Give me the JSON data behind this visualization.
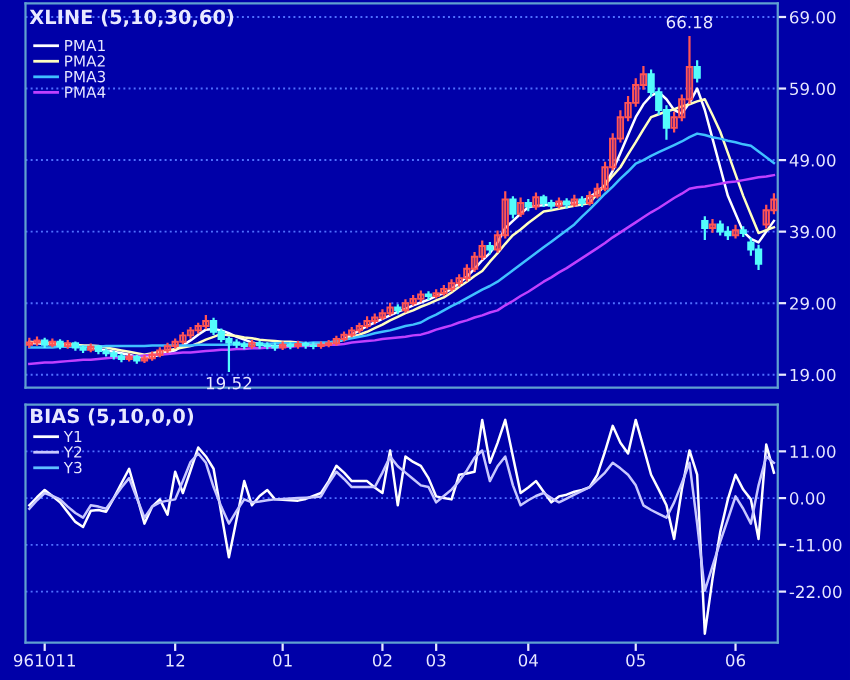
{
  "chart_data": [
    {
      "type": "candlestick",
      "title": "XLINE (5,10,30,60)",
      "categories": [
        null,
        null,
        "961011",
        null,
        null,
        null,
        null,
        null,
        null,
        null,
        null,
        null,
        null,
        null,
        null,
        null,
        null,
        null,
        null,
        "12",
        null,
        null,
        null,
        null,
        null,
        null,
        null,
        null,
        null,
        null,
        null,
        null,
        null,
        "01",
        null,
        null,
        null,
        null,
        null,
        null,
        null,
        null,
        null,
        null,
        null,
        null,
        "02",
        null,
        null,
        null,
        null,
        null,
        null,
        "03",
        null,
        null,
        null,
        null,
        null,
        null,
        null,
        null,
        null,
        null,
        null,
        "04",
        null,
        null,
        null,
        null,
        null,
        null,
        null,
        null,
        null,
        null,
        null,
        null,
        null,
        "05",
        null,
        null,
        null,
        null,
        null,
        null,
        null,
        null,
        null,
        null,
        null,
        null,
        "06",
        null,
        null,
        null,
        null,
        null
      ],
      "ohlc": [
        [
          23.2,
          24.0,
          22.9,
          23.5
        ],
        [
          23.5,
          24.2,
          23.2,
          23.8
        ],
        [
          23.8,
          24.0,
          22.9,
          23.2
        ],
        [
          23.2,
          23.9,
          23.0,
          23.6
        ],
        [
          23.6,
          23.8,
          22.7,
          23.0
        ],
        [
          23.0,
          23.7,
          22.8,
          23.4
        ],
        [
          23.4,
          23.5,
          22.5,
          22.8
        ],
        [
          22.8,
          23.0,
          22.2,
          22.5
        ],
        [
          22.5,
          23.2,
          22.3,
          22.9
        ],
        [
          22.9,
          23.0,
          22.0,
          22.3
        ],
        [
          22.3,
          22.5,
          21.7,
          22.0
        ],
        [
          22.0,
          22.2,
          21.3,
          21.6
        ],
        [
          21.6,
          21.8,
          20.9,
          21.2
        ],
        [
          21.2,
          21.8,
          21.0,
          21.5
        ],
        [
          21.5,
          21.6,
          20.7,
          21.0
        ],
        [
          21.0,
          21.6,
          20.8,
          21.3
        ],
        [
          21.3,
          22.1,
          21.1,
          21.8
        ],
        [
          21.8,
          22.7,
          21.6,
          22.4
        ],
        [
          22.4,
          23.3,
          22.2,
          23.0
        ],
        [
          23.0,
          23.9,
          22.8,
          23.6
        ],
        [
          23.6,
          24.8,
          23.4,
          24.5
        ],
        [
          24.5,
          25.5,
          24.2,
          25.2
        ],
        [
          25.2,
          26.1,
          24.9,
          25.8
        ],
        [
          25.8,
          27.2,
          25.5,
          26.5
        ],
        [
          26.5,
          26.8,
          24.7,
          25.0
        ],
        [
          25.0,
          25.3,
          23.7,
          24.0
        ],
        [
          24.0,
          24.2,
          19.52,
          23.5
        ],
        [
          23.5,
          23.8,
          22.9,
          23.2
        ],
        [
          23.2,
          23.5,
          22.7,
          23.0
        ],
        [
          23.0,
          23.7,
          22.8,
          23.4
        ],
        [
          23.4,
          23.6,
          22.8,
          23.1
        ],
        [
          23.1,
          23.4,
          22.7,
          23.0
        ],
        [
          23.0,
          23.3,
          22.5,
          22.8
        ],
        [
          22.8,
          23.5,
          22.6,
          23.2
        ],
        [
          23.2,
          23.4,
          22.7,
          23.0
        ],
        [
          23.0,
          23.6,
          22.8,
          23.3
        ],
        [
          23.3,
          23.5,
          22.8,
          23.1
        ],
        [
          23.1,
          23.4,
          22.7,
          23.0
        ],
        [
          23.0,
          23.5,
          22.8,
          23.2
        ],
        [
          23.2,
          23.7,
          23.0,
          23.4
        ],
        [
          23.4,
          24.3,
          23.2,
          24.0
        ],
        [
          24.0,
          24.9,
          23.8,
          24.6
        ],
        [
          24.6,
          25.5,
          24.4,
          25.2
        ],
        [
          25.2,
          26.1,
          25.0,
          25.8
        ],
        [
          25.8,
          27.0,
          25.6,
          26.5
        ],
        [
          26.5,
          27.4,
          26.2,
          27.0
        ],
        [
          27.0,
          28.0,
          26.8,
          27.6
        ],
        [
          27.6,
          28.9,
          27.4,
          28.4
        ],
        [
          28.4,
          28.7,
          27.6,
          28.0
        ],
        [
          28.0,
          29.4,
          27.8,
          29.0
        ],
        [
          29.0,
          30.0,
          28.8,
          29.6
        ],
        [
          29.6,
          30.6,
          29.3,
          30.2
        ],
        [
          30.2,
          30.5,
          29.6,
          30.0
        ],
        [
          30.0,
          30.8,
          29.8,
          30.4
        ],
        [
          30.4,
          31.4,
          30.2,
          31.0
        ],
        [
          31.0,
          32.2,
          30.8,
          31.8
        ],
        [
          31.8,
          32.9,
          31.5,
          32.5
        ],
        [
          32.5,
          34.3,
          32.2,
          33.8
        ],
        [
          33.8,
          36.0,
          33.5,
          35.5
        ],
        [
          35.5,
          37.6,
          35.2,
          37.0
        ],
        [
          37.0,
          37.4,
          36.0,
          36.5
        ],
        [
          36.5,
          39.0,
          36.2,
          38.5
        ],
        [
          38.5,
          44.5,
          38.2,
          43.5
        ],
        [
          43.5,
          43.8,
          41.0,
          41.5
        ],
        [
          41.5,
          43.6,
          41.2,
          43.0
        ],
        [
          43.0,
          43.4,
          42.0,
          42.5
        ],
        [
          42.5,
          44.3,
          42.2,
          43.8
        ],
        [
          43.8,
          44.0,
          42.6,
          43.0
        ],
        [
          43.0,
          43.3,
          42.2,
          42.6
        ],
        [
          42.6,
          43.6,
          42.4,
          43.2
        ],
        [
          43.2,
          43.5,
          42.4,
          42.8
        ],
        [
          42.8,
          44.0,
          42.6,
          43.5
        ],
        [
          43.5,
          43.8,
          42.6,
          43.0
        ],
        [
          43.0,
          44.5,
          42.8,
          44.0
        ],
        [
          44.0,
          45.6,
          43.8,
          45.0
        ],
        [
          45.0,
          48.6,
          44.8,
          48.0
        ],
        [
          48.0,
          52.6,
          47.7,
          52.0
        ],
        [
          52.0,
          55.8,
          51.6,
          55.0
        ],
        [
          55.0,
          57.8,
          54.6,
          57.0
        ],
        [
          57.0,
          60.3,
          56.6,
          59.5
        ],
        [
          59.5,
          62.0,
          59.0,
          61.0
        ],
        [
          61.0,
          61.5,
          58.0,
          58.5
        ],
        [
          58.5,
          59.0,
          55.5,
          56.0
        ],
        [
          56.0,
          56.5,
          52.0,
          53.5
        ],
        [
          53.5,
          55.6,
          53.0,
          55.0
        ],
        [
          55.0,
          58.0,
          54.6,
          57.5
        ],
        [
          57.5,
          66.18,
          57.0,
          62.0
        ],
        [
          62.0,
          62.8,
          60.0,
          60.5
        ],
        [
          40.5,
          41.0,
          38.0,
          39.5
        ],
        [
          39.5,
          40.6,
          39.0,
          40.0
        ],
        [
          40.0,
          40.4,
          38.6,
          39.0
        ],
        [
          39.0,
          39.6,
          38.0,
          38.5
        ],
        [
          38.5,
          39.8,
          38.2,
          39.2
        ],
        [
          39.2,
          39.6,
          38.4,
          38.8
        ],
        [
          37.5,
          38.0,
          35.8,
          36.5
        ],
        [
          36.5,
          37.0,
          33.8,
          34.5
        ],
        [
          40.0,
          42.6,
          39.6,
          42.0
        ],
        [
          42.0,
          44.2,
          41.6,
          43.5
        ]
      ],
      "colors": [
        "#ff5454",
        "#ff5454",
        "#54fcfc",
        "#ff5454",
        "#54fcfc",
        "#ff5454",
        "#54fcfc",
        "#54fcfc",
        "#ff5454",
        "#54fcfc",
        "#54fcfc",
        "#54fcfc",
        "#54fcfc",
        "#ff5454",
        "#54fcfc",
        "#ff5454",
        "#ff5454",
        "#ff5454",
        "#ff5454",
        "#ff5454",
        "#ff5454",
        "#ff5454",
        "#ff5454",
        "#ff5454",
        "#54fcfc",
        "#54fcfc",
        "#54fcfc",
        "#54fcfc",
        "#54fcfc",
        "#ff5454",
        "#54fcfc",
        "#54fcfc",
        "#54fcfc",
        "#ff5454",
        "#54fcfc",
        "#ff5454",
        "#54fcfc",
        "#54fcfc",
        "#ff5454",
        "#ff5454",
        "#ff5454",
        "#ff5454",
        "#ff5454",
        "#ff5454",
        "#ff5454",
        "#ff5454",
        "#ff5454",
        "#ff5454",
        "#54fcfc",
        "#ff5454",
        "#ff5454",
        "#ff5454",
        "#54fcfc",
        "#ff5454",
        "#ff5454",
        "#ff5454",
        "#ff5454",
        "#ff5454",
        "#ff5454",
        "#ff5454",
        "#54fcfc",
        "#ff5454",
        "#ff5454",
        "#54fcfc",
        "#ff5454",
        "#54fcfc",
        "#ff5454",
        "#54fcfc",
        "#54fcfc",
        "#ff5454",
        "#54fcfc",
        "#ff5454",
        "#54fcfc",
        "#ff5454",
        "#ff5454",
        "#ff5454",
        "#ff5454",
        "#ff5454",
        "#ff5454",
        "#ff5454",
        "#ff5454",
        "#54fcfc",
        "#54fcfc",
        "#54fcfc",
        "#ff5454",
        "#ff5454",
        "#ff5454",
        "#54fcfc",
        "#54fcfc",
        "#ff5454",
        "#54fcfc",
        "#54fcfc",
        "#ff5454",
        "#54fcfc",
        "#54fcfc",
        "#54fcfc",
        "#ff5454",
        "#ff5454"
      ],
      "series": [
        {
          "name": "PMA1",
          "type": "line",
          "color": "#ffffff",
          "values": [
            23.4,
            23.4,
            23.3,
            23.3,
            23.2,
            23.1,
            23.1,
            23.0,
            22.8,
            22.6,
            22.4,
            22.2,
            22.0,
            21.8,
            21.5,
            21.4,
            21.5,
            21.8,
            22.1,
            22.4,
            23.1,
            23.8,
            24.6,
            25.3,
            25.4,
            25.2,
            24.8,
            24.3,
            23.9,
            23.5,
            23.3,
            23.1,
            23.0,
            23.0,
            23.0,
            23.1,
            23.1,
            23.1,
            23.2,
            23.2,
            23.5,
            24.0,
            24.6,
            25.2,
            25.8,
            26.3,
            26.8,
            27.3,
            27.8,
            28.2,
            28.7,
            29.1,
            29.5,
            30.0,
            30.4,
            31.0,
            31.8,
            32.7,
            33.8,
            35.0,
            36.0,
            37.5,
            39.5,
            40.5,
            41.5,
            42.4,
            42.6,
            42.7,
            42.8,
            42.9,
            43.0,
            43.0,
            43.3,
            43.8,
            44.6,
            45.5,
            47.5,
            50.0,
            52.5,
            55.0,
            56.8,
            58.0,
            58.5,
            57.5,
            56.0,
            55.5,
            57.0,
            59.0,
            56.0,
            52.0,
            48.0,
            44.0,
            41.5,
            39.0,
            38.0,
            37.5,
            39.0,
            40.5
          ]
        },
        {
          "name": "PMA2",
          "type": "line",
          "color": "#ffffc0",
          "values": [
            23.6,
            23.5,
            23.5,
            23.4,
            23.3,
            23.3,
            23.2,
            23.1,
            23.1,
            23.0,
            22.8,
            22.6,
            22.4,
            22.2,
            22.0,
            21.8,
            22.0,
            22.2,
            22.4,
            22.6,
            22.8,
            23.0,
            23.4,
            23.9,
            24.3,
            24.7,
            24.5,
            24.4,
            24.2,
            24.1,
            23.9,
            23.8,
            23.7,
            23.6,
            23.6,
            23.5,
            23.4,
            23.3,
            23.3,
            23.2,
            23.6,
            23.9,
            24.3,
            24.6,
            25.0,
            25.5,
            26.0,
            26.6,
            27.1,
            27.6,
            28.0,
            28.5,
            28.9,
            29.4,
            29.8,
            30.5,
            31.3,
            32.0,
            32.8,
            33.5,
            34.8,
            36.0,
            37.3,
            38.5,
            39.3,
            40.2,
            41.0,
            41.8,
            42.0,
            42.2,
            42.4,
            42.6,
            42.8,
            43.0,
            44.3,
            45.5,
            46.8,
            48.0,
            49.8,
            51.5,
            53.3,
            55.0,
            55.4,
            55.8,
            56.1,
            56.5,
            56.8,
            57.2,
            57.5,
            55.3,
            53.0,
            50.0,
            47.0,
            44.0,
            41.4,
            38.8,
            39.2,
            39.6
          ]
        },
        {
          "name": "PMA3",
          "type": "line",
          "color": "#40c0ff",
          "values": [
            22.8,
            22.8,
            22.8,
            22.8,
            22.9,
            22.9,
            22.9,
            22.9,
            22.9,
            22.9,
            23.0,
            23.0,
            23.0,
            23.0,
            23.0,
            23.0,
            23.1,
            23.1,
            23.1,
            23.1,
            23.1,
            23.1,
            23.2,
            23.2,
            23.2,
            23.2,
            23.2,
            23.3,
            23.3,
            23.3,
            23.3,
            23.3,
            23.4,
            23.4,
            23.4,
            23.4,
            23.4,
            23.5,
            23.5,
            23.5,
            23.7,
            23.9,
            24.1,
            24.3,
            24.5,
            24.8,
            25.0,
            25.2,
            25.5,
            25.8,
            26.0,
            26.3,
            26.9,
            27.4,
            28.0,
            28.6,
            29.1,
            29.7,
            30.3,
            30.9,
            31.4,
            32.0,
            32.8,
            33.6,
            34.4,
            35.2,
            36.0,
            36.8,
            37.6,
            38.4,
            39.2,
            40.0,
            41.1,
            42.1,
            43.2,
            44.3,
            45.3,
            46.4,
            47.4,
            48.5,
            49.0,
            49.6,
            50.1,
            50.6,
            51.1,
            51.6,
            52.2,
            52.7,
            52.5,
            52.2,
            52.0,
            51.7,
            51.5,
            51.2,
            51.0,
            50.2,
            49.4,
            48.6
          ]
        },
        {
          "name": "PMA4",
          "type": "line",
          "color": "#c040ff",
          "values": [
            20.5,
            20.6,
            20.7,
            20.7,
            20.8,
            20.9,
            21.0,
            21.1,
            21.1,
            21.2,
            21.3,
            21.4,
            21.4,
            21.5,
            21.6,
            21.7,
            21.8,
            21.8,
            21.9,
            22.0,
            22.1,
            22.1,
            22.2,
            22.3,
            22.4,
            22.5,
            22.5,
            22.6,
            22.6,
            22.7,
            22.7,
            22.8,
            22.8,
            22.9,
            22.9,
            23.0,
            23.0,
            23.1,
            23.1,
            23.2,
            23.2,
            23.3,
            23.5,
            23.6,
            23.7,
            23.8,
            24.0,
            24.1,
            24.2,
            24.3,
            24.5,
            24.6,
            24.9,
            25.3,
            25.6,
            25.9,
            26.3,
            26.6,
            27.0,
            27.3,
            27.7,
            28.0,
            28.7,
            29.3,
            30.0,
            30.6,
            31.3,
            32.0,
            32.6,
            33.3,
            33.9,
            34.6,
            35.3,
            36.0,
            36.7,
            37.4,
            38.2,
            38.9,
            39.6,
            40.3,
            41.0,
            41.7,
            42.3,
            43.0,
            43.7,
            44.3,
            45.0,
            45.2,
            45.3,
            45.5,
            45.7,
            45.9,
            46.0,
            46.2,
            46.4,
            46.6,
            46.7,
            46.9
          ]
        }
      ],
      "ylim": [
        17.2,
        70.9
      ],
      "yticks": [
        {
          "value": 19,
          "label": "19.00"
        },
        {
          "value": 29,
          "label": "29.00"
        },
        {
          "value": 39,
          "label": "39.00"
        },
        {
          "value": 49,
          "label": "49.00"
        },
        {
          "value": 59,
          "label": "59.00"
        },
        {
          "value": 69,
          "label": "69.00"
        }
      ],
      "tick_labels": "y",
      "grid": "y",
      "legend": "top left",
      "annotations": [
        "66.18",
        "19.52"
      ]
    },
    {
      "type": "line",
      "title": "BIAS (5,10,0,0)",
      "categories": [
        null,
        null,
        "961011",
        null,
        null,
        null,
        null,
        null,
        null,
        null,
        null,
        null,
        null,
        null,
        null,
        null,
        null,
        null,
        null,
        "12",
        null,
        null,
        null,
        null,
        null,
        null,
        null,
        null,
        null,
        null,
        null,
        null,
        null,
        "01",
        null,
        null,
        null,
        null,
        null,
        null,
        null,
        null,
        null,
        null,
        null,
        null,
        "02",
        null,
        null,
        null,
        null,
        null,
        null,
        "03",
        null,
        null,
        null,
        null,
        null,
        null,
        null,
        null,
        null,
        null,
        null,
        "04",
        null,
        null,
        null,
        null,
        null,
        null,
        null,
        null,
        null,
        null,
        null,
        null,
        null,
        "05",
        null,
        null,
        null,
        null,
        null,
        null,
        null,
        null,
        null,
        null,
        null,
        null,
        "06",
        null,
        null,
        null,
        null,
        null
      ],
      "ylim": [
        -34,
        22
      ],
      "yticks": [
        {
          "value": 11,
          "label": "11.00"
        },
        {
          "value": 0,
          "label": "0.00"
        },
        {
          "value": -11,
          "label": "-11.00"
        },
        {
          "value": -22,
          "label": "-22.00"
        }
      ],
      "grid": "y",
      "legend": "top left",
      "series": [
        {
          "name": "Y1",
          "color": "#ffffff",
          "values": [
            -1.7,
            0.2,
            1.9,
            0.5,
            -1.0,
            -3.3,
            -5.6,
            -6.8,
            -3.0,
            -2.8,
            -3.2,
            0.0,
            3.5,
            6.9,
            0.5,
            -6.0,
            -2.0,
            -0.3,
            -3.9,
            6.2,
            1.2,
            6.5,
            11.9,
            9.8,
            6.9,
            -3.5,
            -13.9,
            -5.0,
            4.0,
            -1.7,
            0.5,
            1.9,
            -0.3,
            -0.4,
            -0.5,
            -0.6,
            -0.2,
            0.5,
            1.2,
            4.0,
            7.6,
            6.0,
            4.0,
            4.0,
            4.0,
            2.5,
            1.2,
            11.2,
            -1.7,
            9.8,
            8.5,
            7.6,
            4.7,
            0.4,
            0.0,
            -0.3,
            5.5,
            5.8,
            6.2,
            18.4,
            8.3,
            13.0,
            18.4,
            9.8,
            1.2,
            2.5,
            4.0,
            1.5,
            -1.0,
            0.4,
            0.8,
            1.5,
            1.9,
            2.6,
            5.5,
            11.0,
            17.0,
            13.0,
            10.5,
            18.4,
            12.0,
            5.5,
            2.0,
            -1.7,
            -9.6,
            2.0,
            11.2,
            5.5,
            -31.9,
            -19.0,
            -8.0,
            -0.3,
            5.5,
            2.0,
            -0.3,
            -9.6,
            12.6,
            6.0
          ]
        },
        {
          "name": "Y2",
          "color": "#c8c8ff",
          "values": [
            -2.5,
            -0.5,
            1.2,
            0.5,
            -0.3,
            -2.0,
            -3.5,
            -4.6,
            -1.7,
            -2.0,
            -2.5,
            0.0,
            2.5,
            4.7,
            0.0,
            -4.6,
            -2.0,
            -1.0,
            -0.6,
            -0.3,
            4.0,
            8.5,
            10.5,
            8.3,
            2.6,
            -2.0,
            -6.0,
            -3.0,
            -0.3,
            -1.0,
            -0.8,
            -0.5,
            -0.3,
            -0.2,
            -0.1,
            0.0,
            0.1,
            0.2,
            0.4,
            3.5,
            6.2,
            4.5,
            2.6,
            2.6,
            2.6,
            2.6,
            6.0,
            9.8,
            7.5,
            6.0,
            4.5,
            3.0,
            2.6,
            -1.0,
            0.5,
            2.0,
            4.0,
            6.5,
            9.5,
            11.2,
            4.0,
            7.5,
            9.8,
            3.0,
            -1.7,
            -0.5,
            0.5,
            1.2,
            0.0,
            -1.0,
            -0.1,
            0.8,
            1.7,
            2.6,
            4.3,
            6.0,
            8.3,
            7.0,
            5.5,
            3.0,
            -1.7,
            -2.8,
            -3.7,
            -4.6,
            -1.0,
            3.5,
            8.3,
            -6.0,
            -21.8,
            -16.0,
            -10.3,
            -5.0,
            0.4,
            -2.5,
            -6.0,
            3.0,
            9.8,
            8.3
          ]
        },
        {
          "name": "Y3",
          "color": "#60c0ff",
          "values": [
            null,
            null,
            null,
            null,
            null,
            null,
            null,
            null,
            null,
            null,
            null,
            null,
            null,
            null,
            null,
            null,
            null,
            null,
            null,
            null,
            null,
            null,
            null,
            null,
            null,
            null,
            null,
            null,
            null,
            null,
            null,
            null,
            null,
            null,
            null,
            null,
            null,
            null,
            null,
            null,
            null,
            null,
            null,
            null,
            null,
            null,
            null,
            null,
            null,
            null,
            null,
            null,
            null,
            null,
            null,
            null,
            null,
            null,
            null,
            null,
            null,
            null,
            null,
            null,
            null,
            null,
            null,
            null,
            null,
            null,
            null,
            null,
            null,
            null,
            null,
            null,
            null,
            null,
            null,
            null,
            null,
            null,
            null,
            null,
            null,
            null,
            null,
            null,
            null,
            null,
            null,
            null,
            null,
            null,
            null,
            null,
            null,
            null
          ]
        }
      ]
    }
  ]
}
